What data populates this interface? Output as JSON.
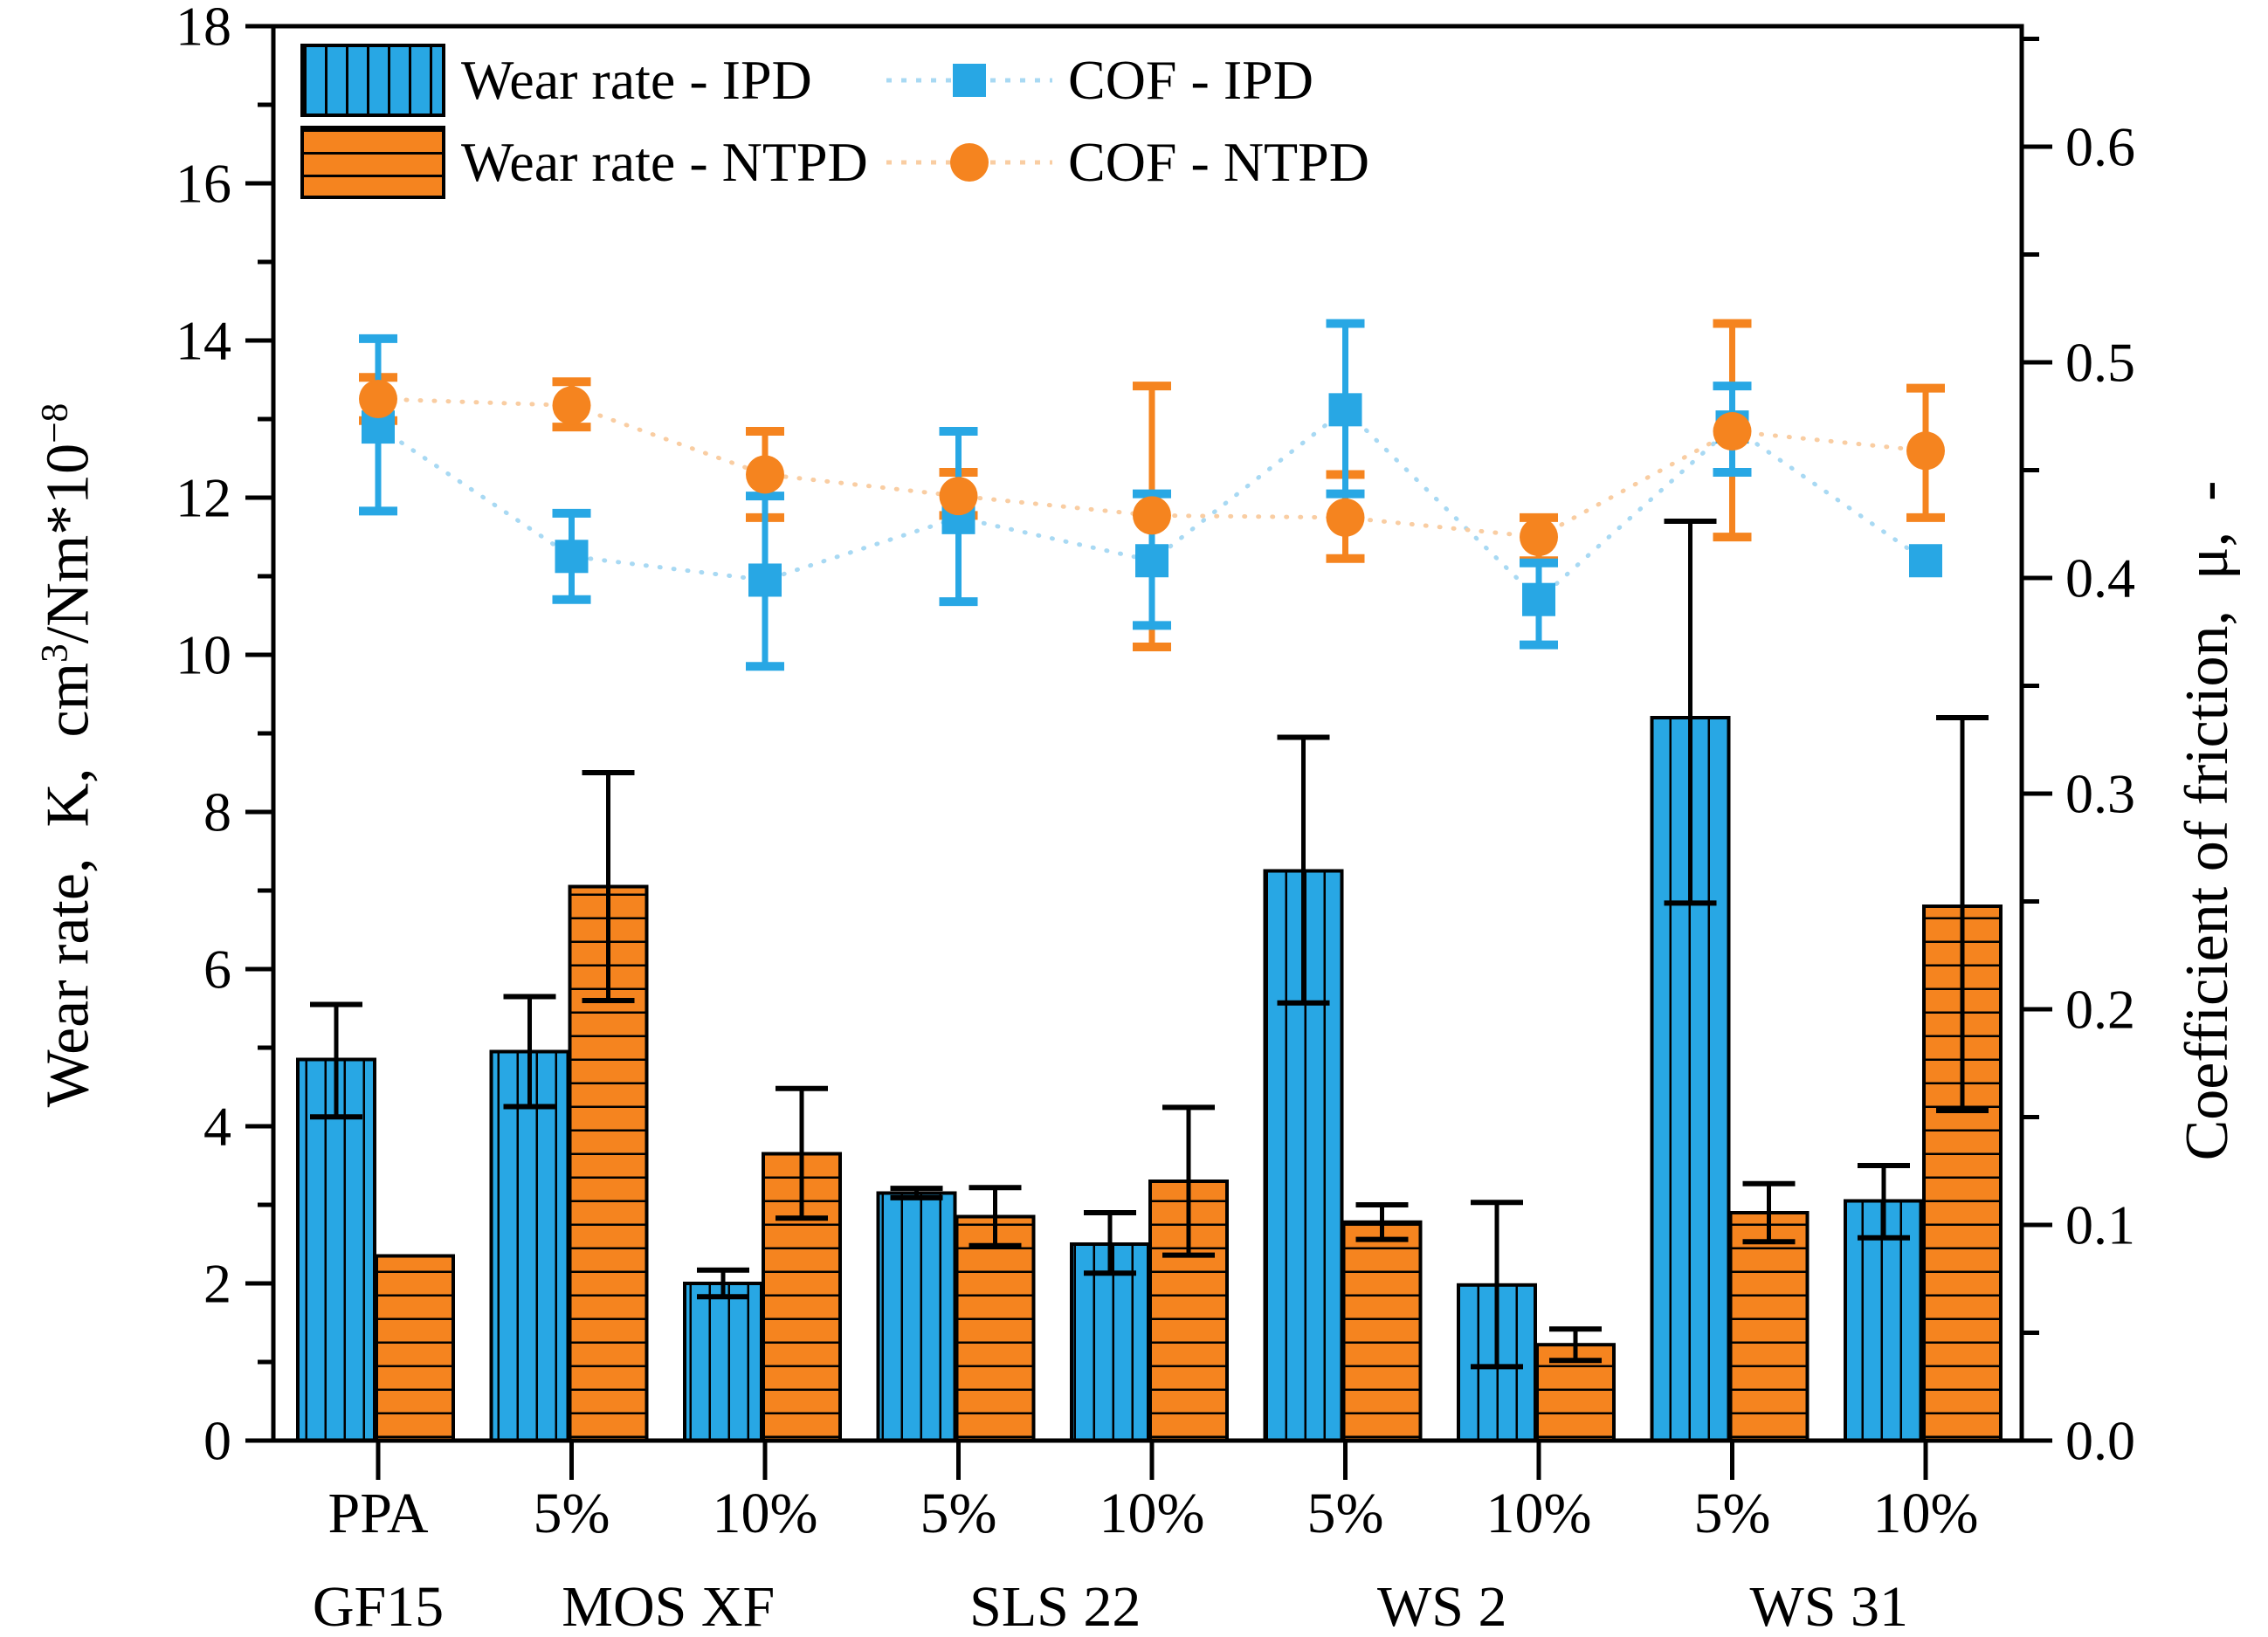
{
  "colors": {
    "ipd": "#28A7E4",
    "ntpd": "#F5841F",
    "ipd_line": "#A8D9F3",
    "ntpd_line": "#F9CDA2",
    "error_bar": "#000000"
  },
  "left_axis": {
    "title_main": "Wear rate,  K,  cm",
    "title_sup1": "3",
    "title_mid": "/Nm*10",
    "title_sup2": "−8",
    "tick_labels": [
      "0",
      "2",
      "4",
      "6",
      "8",
      "10",
      "12",
      "14",
      "16",
      "18"
    ]
  },
  "right_axis": {
    "title": "Coefficient of friction,  μ,  -",
    "tick_labels": [
      "0.0",
      "0.1",
      "0.2",
      "0.3",
      "0.4",
      "0.5",
      "0.6"
    ]
  },
  "legend": {
    "items": [
      {
        "label": "Wear rate - IPD",
        "type": "bar",
        "series": "ipd"
      },
      {
        "label": "Wear rate - NTPD",
        "type": "bar",
        "series": "ntpd"
      },
      {
        "label": "COF - IPD",
        "type": "line",
        "series": "ipd"
      },
      {
        "label": "COF - NTPD",
        "type": "line",
        "series": "ntpd"
      }
    ]
  },
  "chart_data": {
    "type": "bar",
    "subtype": "bars-with-overlaid-scatter-lines",
    "x_tick_labels": [
      "PPA",
      "5%",
      "10%",
      "5%",
      "10%",
      "5%",
      "10%",
      "5%",
      "10%"
    ],
    "material_groups": [
      {
        "label": "GF15",
        "ticks": [
          0
        ]
      },
      {
        "label": "MOS XF",
        "ticks": [
          1,
          2
        ]
      },
      {
        "label": "SLS 22",
        "ticks": [
          3,
          4
        ]
      },
      {
        "label": "WS 2",
        "ticks": [
          5,
          6
        ]
      },
      {
        "label": "WS 31",
        "ticks": [
          7,
          8
        ]
      }
    ],
    "left_ylabel": "Wear rate, K, cm3/Nm*10-8",
    "right_ylabel": "Coefficient of friction, mu, -",
    "left_ylim": [
      0,
      18
    ],
    "right_ylim": [
      0,
      0.656
    ],
    "grid": false,
    "legend_position": "top-left-inside",
    "bars": [
      {
        "name": "Wear rate - IPD",
        "color": "#28A7E4",
        "hatch": "vertical",
        "values": [
          4.85,
          4.95,
          2.0,
          3.15,
          2.5,
          7.25,
          1.98,
          9.2,
          3.05
        ],
        "err_plus": [
          0.7,
          0.7,
          0.17,
          0.06,
          0.4,
          1.7,
          1.05,
          2.5,
          0.45
        ],
        "err_minus": [
          0.73,
          0.7,
          0.17,
          0.06,
          0.37,
          1.68,
          1.04,
          2.36,
          0.47
        ]
      },
      {
        "name": "Wear rate - NTPD",
        "color": "#F5841F",
        "hatch": "horizontal",
        "values": [
          2.35,
          7.05,
          3.65,
          2.85,
          3.3,
          2.78,
          1.22,
          2.9,
          6.8
        ],
        "err_plus": [
          0,
          1.45,
          0.83,
          0.37,
          0.94,
          0.22,
          0.2,
          0.37,
          2.4
        ],
        "err_minus": [
          0,
          1.45,
          0.82,
          0.37,
          0.94,
          0.22,
          0.2,
          0.37,
          2.6
        ]
      }
    ],
    "lines": [
      {
        "name": "COF - IPD",
        "marker": "square",
        "color": "#28A7E4",
        "line_color": "#A8D9F3",
        "values": [
          0.47,
          0.41,
          0.399,
          0.428,
          0.408,
          0.478,
          0.39,
          0.47,
          0.408
        ],
        "err_plus": [
          0.041,
          0.02,
          0.039,
          0.04,
          0.031,
          0.04,
          0.017,
          0.019,
          0
        ],
        "err_minus": [
          0.039,
          0.02,
          0.04,
          0.039,
          0.03,
          0.039,
          0.021,
          0.021,
          0
        ]
      },
      {
        "name": "COF - NTPD",
        "marker": "circle",
        "color": "#F5841F",
        "line_color": "#F9CDA2",
        "values": [
          0.483,
          0.48,
          0.448,
          0.438,
          0.429,
          0.428,
          0.419,
          0.468,
          0.459
        ],
        "err_plus": [
          0.01,
          0.011,
          0.02,
          0.011,
          0.06,
          0.02,
          0.009,
          0.05,
          0.029
        ],
        "err_minus": [
          0.01,
          0.01,
          0.02,
          0.009,
          0.061,
          0.019,
          0.011,
          0.049,
          0.031
        ]
      }
    ]
  }
}
